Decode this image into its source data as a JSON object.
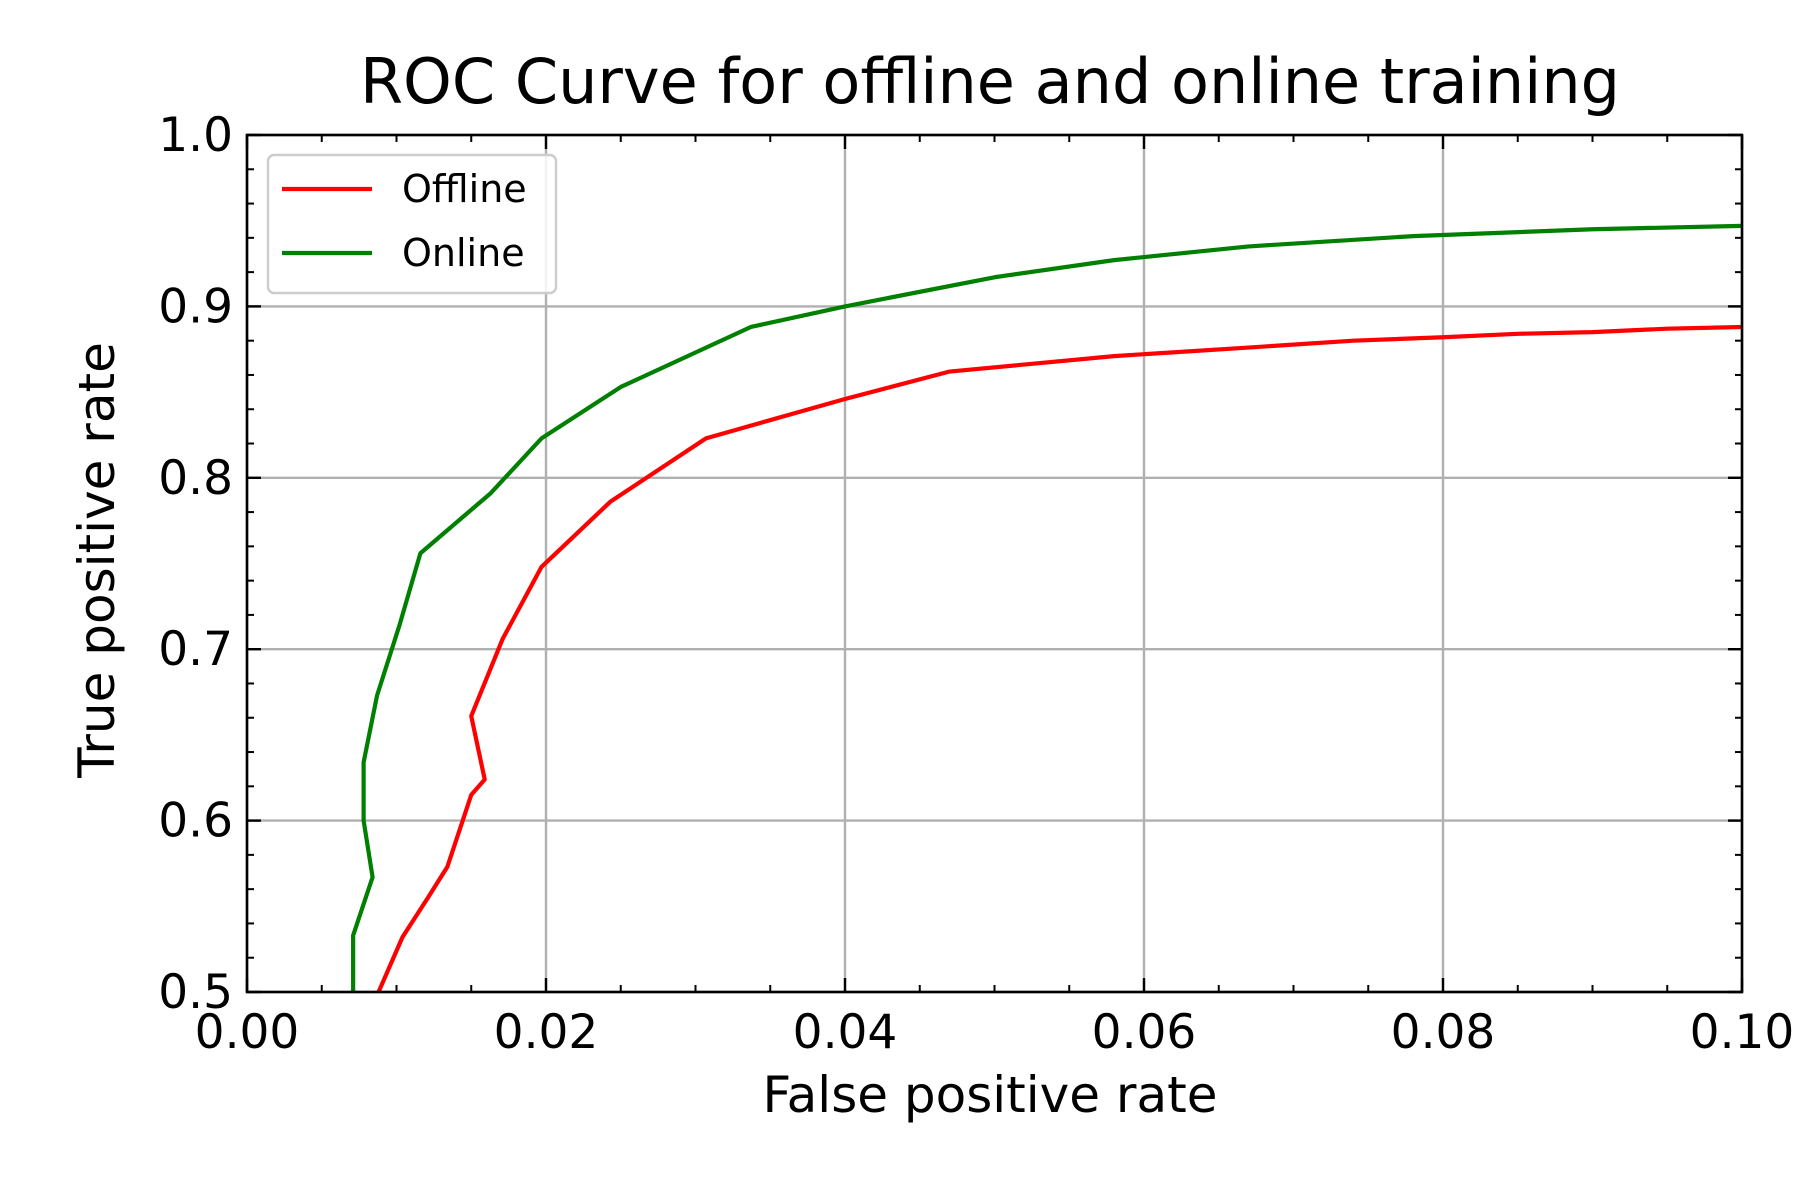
{
  "chart_data": {
    "type": "line",
    "title": "ROC Curve for offline and online training",
    "xlabel": "False positive rate",
    "ylabel": "True positive rate",
    "xlim": [
      0.0,
      0.1
    ],
    "ylim": [
      0.5,
      1.0
    ],
    "xticks": [
      "0.00",
      "0.02",
      "0.04",
      "0.06",
      "0.08",
      "0.10"
    ],
    "yticks": [
      "0.5",
      "0.6",
      "0.7",
      "0.8",
      "0.9",
      "1.0"
    ],
    "grid": true,
    "legend_position": "top-left",
    "series": [
      {
        "name": "Offline",
        "color": "#ff0000",
        "x": [
          0.0088,
          0.0104,
          0.0121,
          0.0134,
          0.015,
          0.0159,
          0.015,
          0.0171,
          0.0197,
          0.0243,
          0.0307,
          0.04,
          0.047,
          0.058,
          0.067,
          0.074,
          0.08,
          0.085,
          0.09,
          0.095,
          0.1
        ],
        "y": [
          0.5,
          0.532,
          0.555,
          0.573,
          0.615,
          0.624,
          0.661,
          0.706,
          0.748,
          0.786,
          0.823,
          0.846,
          0.862,
          0.871,
          0.876,
          0.88,
          0.882,
          0.884,
          0.885,
          0.887,
          0.888
        ]
      },
      {
        "name": "Online",
        "color": "#008000",
        "x": [
          0.0071,
          0.0071,
          0.0084,
          0.0078,
          0.0078,
          0.0087,
          0.0102,
          0.0116,
          0.0163,
          0.0197,
          0.025,
          0.0337,
          0.04,
          0.05,
          0.058,
          0.067,
          0.078,
          0.09,
          0.1
        ],
        "y": [
          0.5,
          0.533,
          0.567,
          0.6,
          0.634,
          0.673,
          0.714,
          0.756,
          0.791,
          0.823,
          0.853,
          0.888,
          0.9,
          0.917,
          0.927,
          0.935,
          0.941,
          0.945,
          0.947
        ]
      }
    ]
  }
}
